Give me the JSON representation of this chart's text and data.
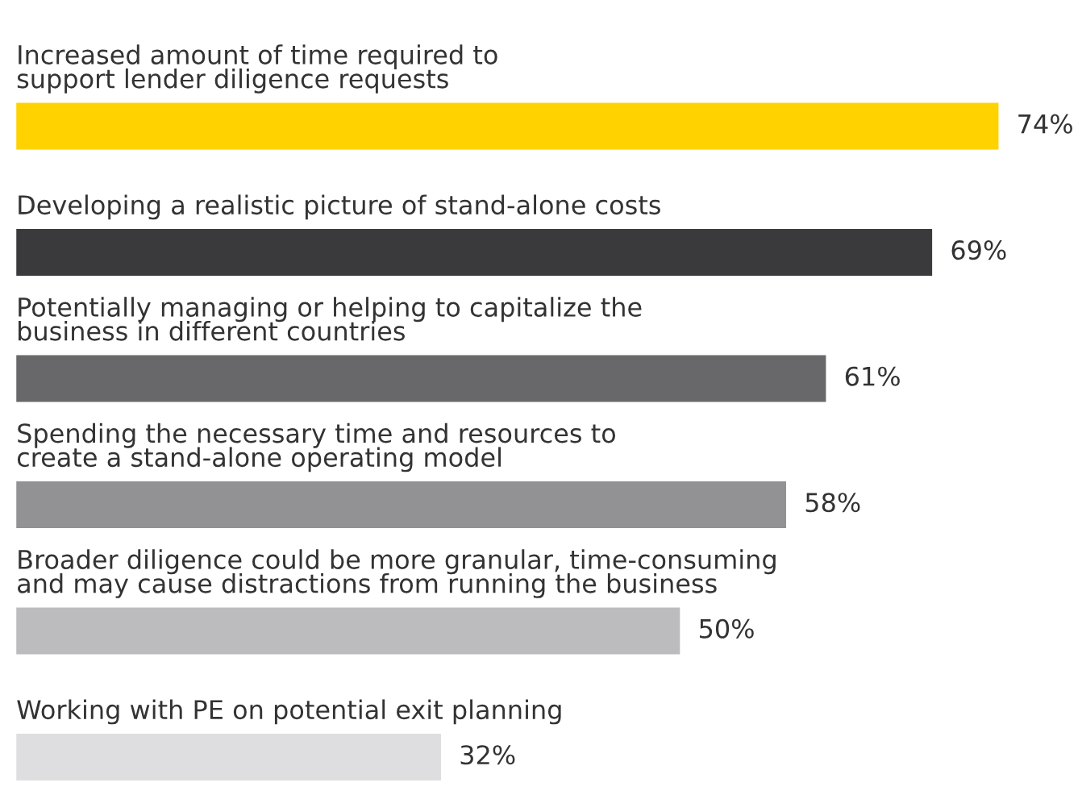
{
  "chart_data": {
    "type": "bar",
    "orientation": "horizontal",
    "categories": [
      "Increased amount of time required to\nsupport lender diligence requests",
      "Developing a realistic picture of stand-alone costs",
      "Potentially managing or helping to capitalize the\nbusiness in different countries",
      "Spending the necessary time and resources to\ncreate a stand-alone operating model",
      "Broader diligence could be more granular, time-consuming\nand may cause distractions from running the business",
      "Working with PE on potential exit planning"
    ],
    "values": [
      74,
      69,
      61,
      58,
      50,
      32
    ],
    "colors": [
      "#ffd200",
      "#3a3a3c",
      "#68686b",
      "#929295",
      "#bcbcbe",
      "#dedee0"
    ],
    "value_labels": [
      "74%",
      "69%",
      "61%",
      "58%",
      "50%",
      "32%"
    ]
  }
}
